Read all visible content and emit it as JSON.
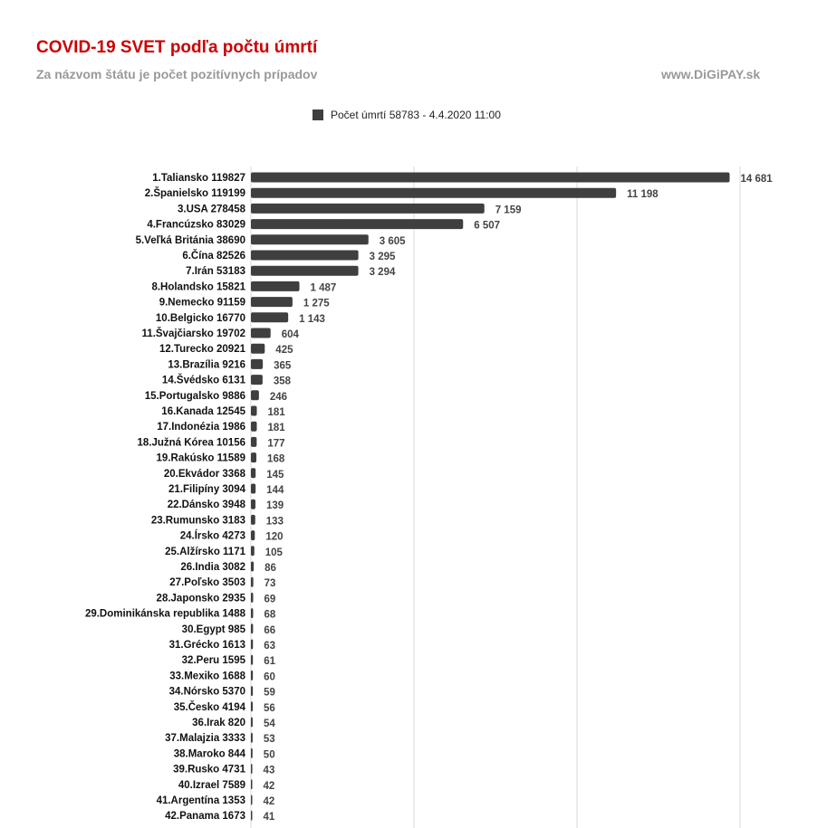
{
  "title": "COVID-19 SVET podľa počtu úmrtí",
  "subtitle": "Za názvom štátu je počet pozitívnych prípadov",
  "source": "www.DiGiPAY.sk",
  "colors": {
    "bar": "#3f3f3f",
    "title": "#cc0000",
    "subtitle": "#999999",
    "grid": "#d9d9d9",
    "label": "#111111",
    "value": "#444444"
  },
  "chart_data": {
    "type": "bar",
    "orientation": "horizontal",
    "title": "COVID-19 SVET podľa počtu úmrtí",
    "subtitle": "Za názvom štátu je počet pozitívnych prípadov",
    "legend": {
      "position": "top",
      "label": "Počet úmrtí 58783 - 4.4.2020  11:00"
    },
    "grid": true,
    "xlim": [
      0,
      15000
    ],
    "gridlines": [
      0,
      5000,
      10000,
      15000
    ],
    "categories": [
      "1.Taliansko 119827",
      "2.Španielsko 119199",
      "3.USA 278458",
      "4.Francúzsko 83029",
      "5.Veľká Británia 38690",
      "6.Čína 82526",
      "7.Irán 53183",
      "8.Holandsko 15821",
      "9.Nemecko 91159",
      "10.Belgicko 16770",
      "11.Švajčiarsko 19702",
      "12.Turecko 20921",
      "13.Brazília 9216",
      "14.Švédsko 6131",
      "15.Portugalsko 9886",
      "16.Kanada 12545",
      "17.Indonézia 1986",
      "18.Južná Kórea 10156",
      "19.Rakúsko 11589",
      "20.Ekvádor 3368",
      "21.Filipíny 3094",
      "22.Dánsko 3948",
      "23.Rumunsko 3183",
      "24.Írsko 4273",
      "25.Alžírsko 1171",
      "26.India 3082",
      "27.Poľsko 3503",
      "28.Japonsko 2935",
      "29.Dominikánska republika 1488",
      "30.Egypt 985",
      "31.Grécko 1613",
      "32.Peru 1595",
      "33.Mexiko 1688",
      "34.Nórsko 5370",
      "35.Česko 4194",
      "36.Irak 820",
      "37.Malajzia 3333",
      "38.Maroko 844",
      "39.Rusko 4731",
      "40.Izrael 7589",
      "41.Argentína 1353",
      "42.Panama 1673"
    ],
    "series": [
      {
        "name": "Počet úmrtí 58783 - 4.4.2020  11:00",
        "values": [
          14681,
          11198,
          7159,
          6507,
          3605,
          3295,
          3294,
          1487,
          1275,
          1143,
          604,
          425,
          365,
          358,
          246,
          181,
          181,
          177,
          168,
          145,
          144,
          139,
          133,
          120,
          105,
          86,
          73,
          69,
          68,
          66,
          63,
          61,
          60,
          59,
          56,
          54,
          53,
          50,
          43,
          42,
          42,
          41
        ],
        "labels": [
          "14 681",
          "11 198",
          "7 159",
          "6 507",
          "3 605",
          "3 295",
          "3 294",
          "1 487",
          "1 275",
          "1 143",
          "604",
          "425",
          "365",
          "358",
          "246",
          "181",
          "181",
          "177",
          "168",
          "145",
          "144",
          "139",
          "133",
          "120",
          "105",
          "86",
          "73",
          "69",
          "68",
          "66",
          "63",
          "61",
          "60",
          "59",
          "56",
          "54",
          "53",
          "50",
          "43",
          "42",
          "42",
          "41"
        ]
      }
    ]
  }
}
